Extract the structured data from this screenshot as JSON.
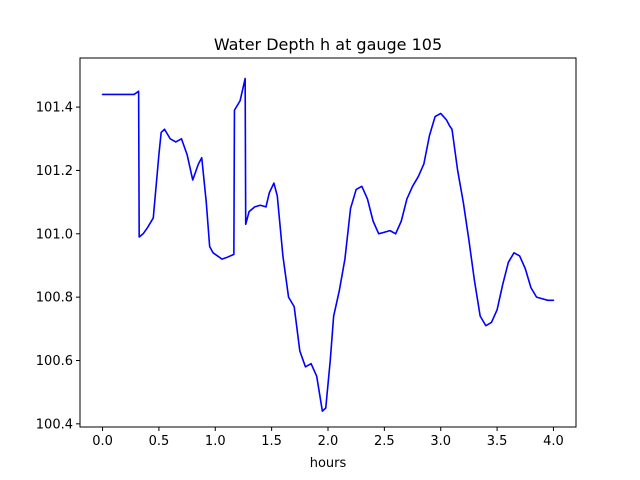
{
  "chart_data": {
    "type": "line",
    "title": "Water Depth h at gauge 105",
    "xlabel": "hours",
    "ylabel": "",
    "xlim": [
      -0.2,
      4.2
    ],
    "ylim": [
      100.39,
      101.555
    ],
    "grid": false,
    "legend": "none",
    "x_ticks": [
      0.0,
      0.5,
      1.0,
      1.5,
      2.0,
      2.5,
      3.0,
      3.5,
      4.0
    ],
    "x_tick_labels": [
      "0.0",
      "0.5",
      "1.0",
      "1.5",
      "2.0",
      "2.5",
      "3.0",
      "3.5",
      "4.0"
    ],
    "y_ticks": [
      100.4,
      100.6,
      100.8,
      101.0,
      101.2,
      101.4
    ],
    "y_tick_labels": [
      "100.4",
      "100.6",
      "100.8",
      "101.0",
      "101.2",
      "101.4"
    ],
    "series": [
      {
        "color": "#0000ff",
        "x": [
          0.0,
          0.1,
          0.2,
          0.28,
          0.32,
          0.325,
          0.36,
          0.4,
          0.45,
          0.5,
          0.52,
          0.55,
          0.6,
          0.65,
          0.7,
          0.75,
          0.8,
          0.85,
          0.88,
          0.92,
          0.95,
          0.98,
          1.02,
          1.06,
          1.1,
          1.165,
          1.17,
          1.22,
          1.265,
          1.27,
          1.3,
          1.35,
          1.4,
          1.45,
          1.48,
          1.52,
          1.55,
          1.6,
          1.65,
          1.7,
          1.75,
          1.8,
          1.85,
          1.9,
          1.95,
          1.98,
          2.02,
          2.05,
          2.1,
          2.15,
          2.2,
          2.25,
          2.3,
          2.35,
          2.4,
          2.45,
          2.5,
          2.55,
          2.6,
          2.65,
          2.7,
          2.75,
          2.8,
          2.85,
          2.9,
          2.95,
          3.0,
          3.05,
          3.08,
          3.1,
          3.15,
          3.2,
          3.25,
          3.3,
          3.35,
          3.4,
          3.45,
          3.5,
          3.55,
          3.6,
          3.65,
          3.7,
          3.75,
          3.8,
          3.85,
          3.9,
          3.95,
          4.0
        ],
        "y": [
          101.44,
          101.44,
          101.44,
          101.44,
          101.45,
          100.99,
          101.0,
          101.02,
          101.05,
          101.25,
          101.32,
          101.33,
          101.3,
          101.29,
          101.3,
          101.25,
          101.17,
          101.22,
          101.24,
          101.1,
          100.96,
          100.94,
          100.93,
          100.92,
          100.925,
          100.935,
          101.39,
          101.42,
          101.49,
          101.03,
          101.07,
          101.085,
          101.09,
          101.085,
          101.13,
          101.16,
          101.12,
          100.93,
          100.8,
          100.77,
          100.63,
          100.58,
          100.59,
          100.55,
          100.44,
          100.45,
          100.6,
          100.74,
          100.82,
          100.92,
          101.08,
          101.14,
          101.15,
          101.11,
          101.04,
          101.0,
          101.005,
          101.01,
          101.0,
          101.04,
          101.11,
          101.15,
          101.18,
          101.22,
          101.31,
          101.37,
          101.38,
          101.36,
          101.34,
          101.33,
          101.2,
          101.1,
          100.98,
          100.85,
          100.74,
          100.71,
          100.72,
          100.76,
          100.84,
          100.91,
          100.94,
          100.93,
          100.89,
          100.83,
          100.8,
          100.795,
          100.79,
          100.79
        ]
      }
    ]
  }
}
